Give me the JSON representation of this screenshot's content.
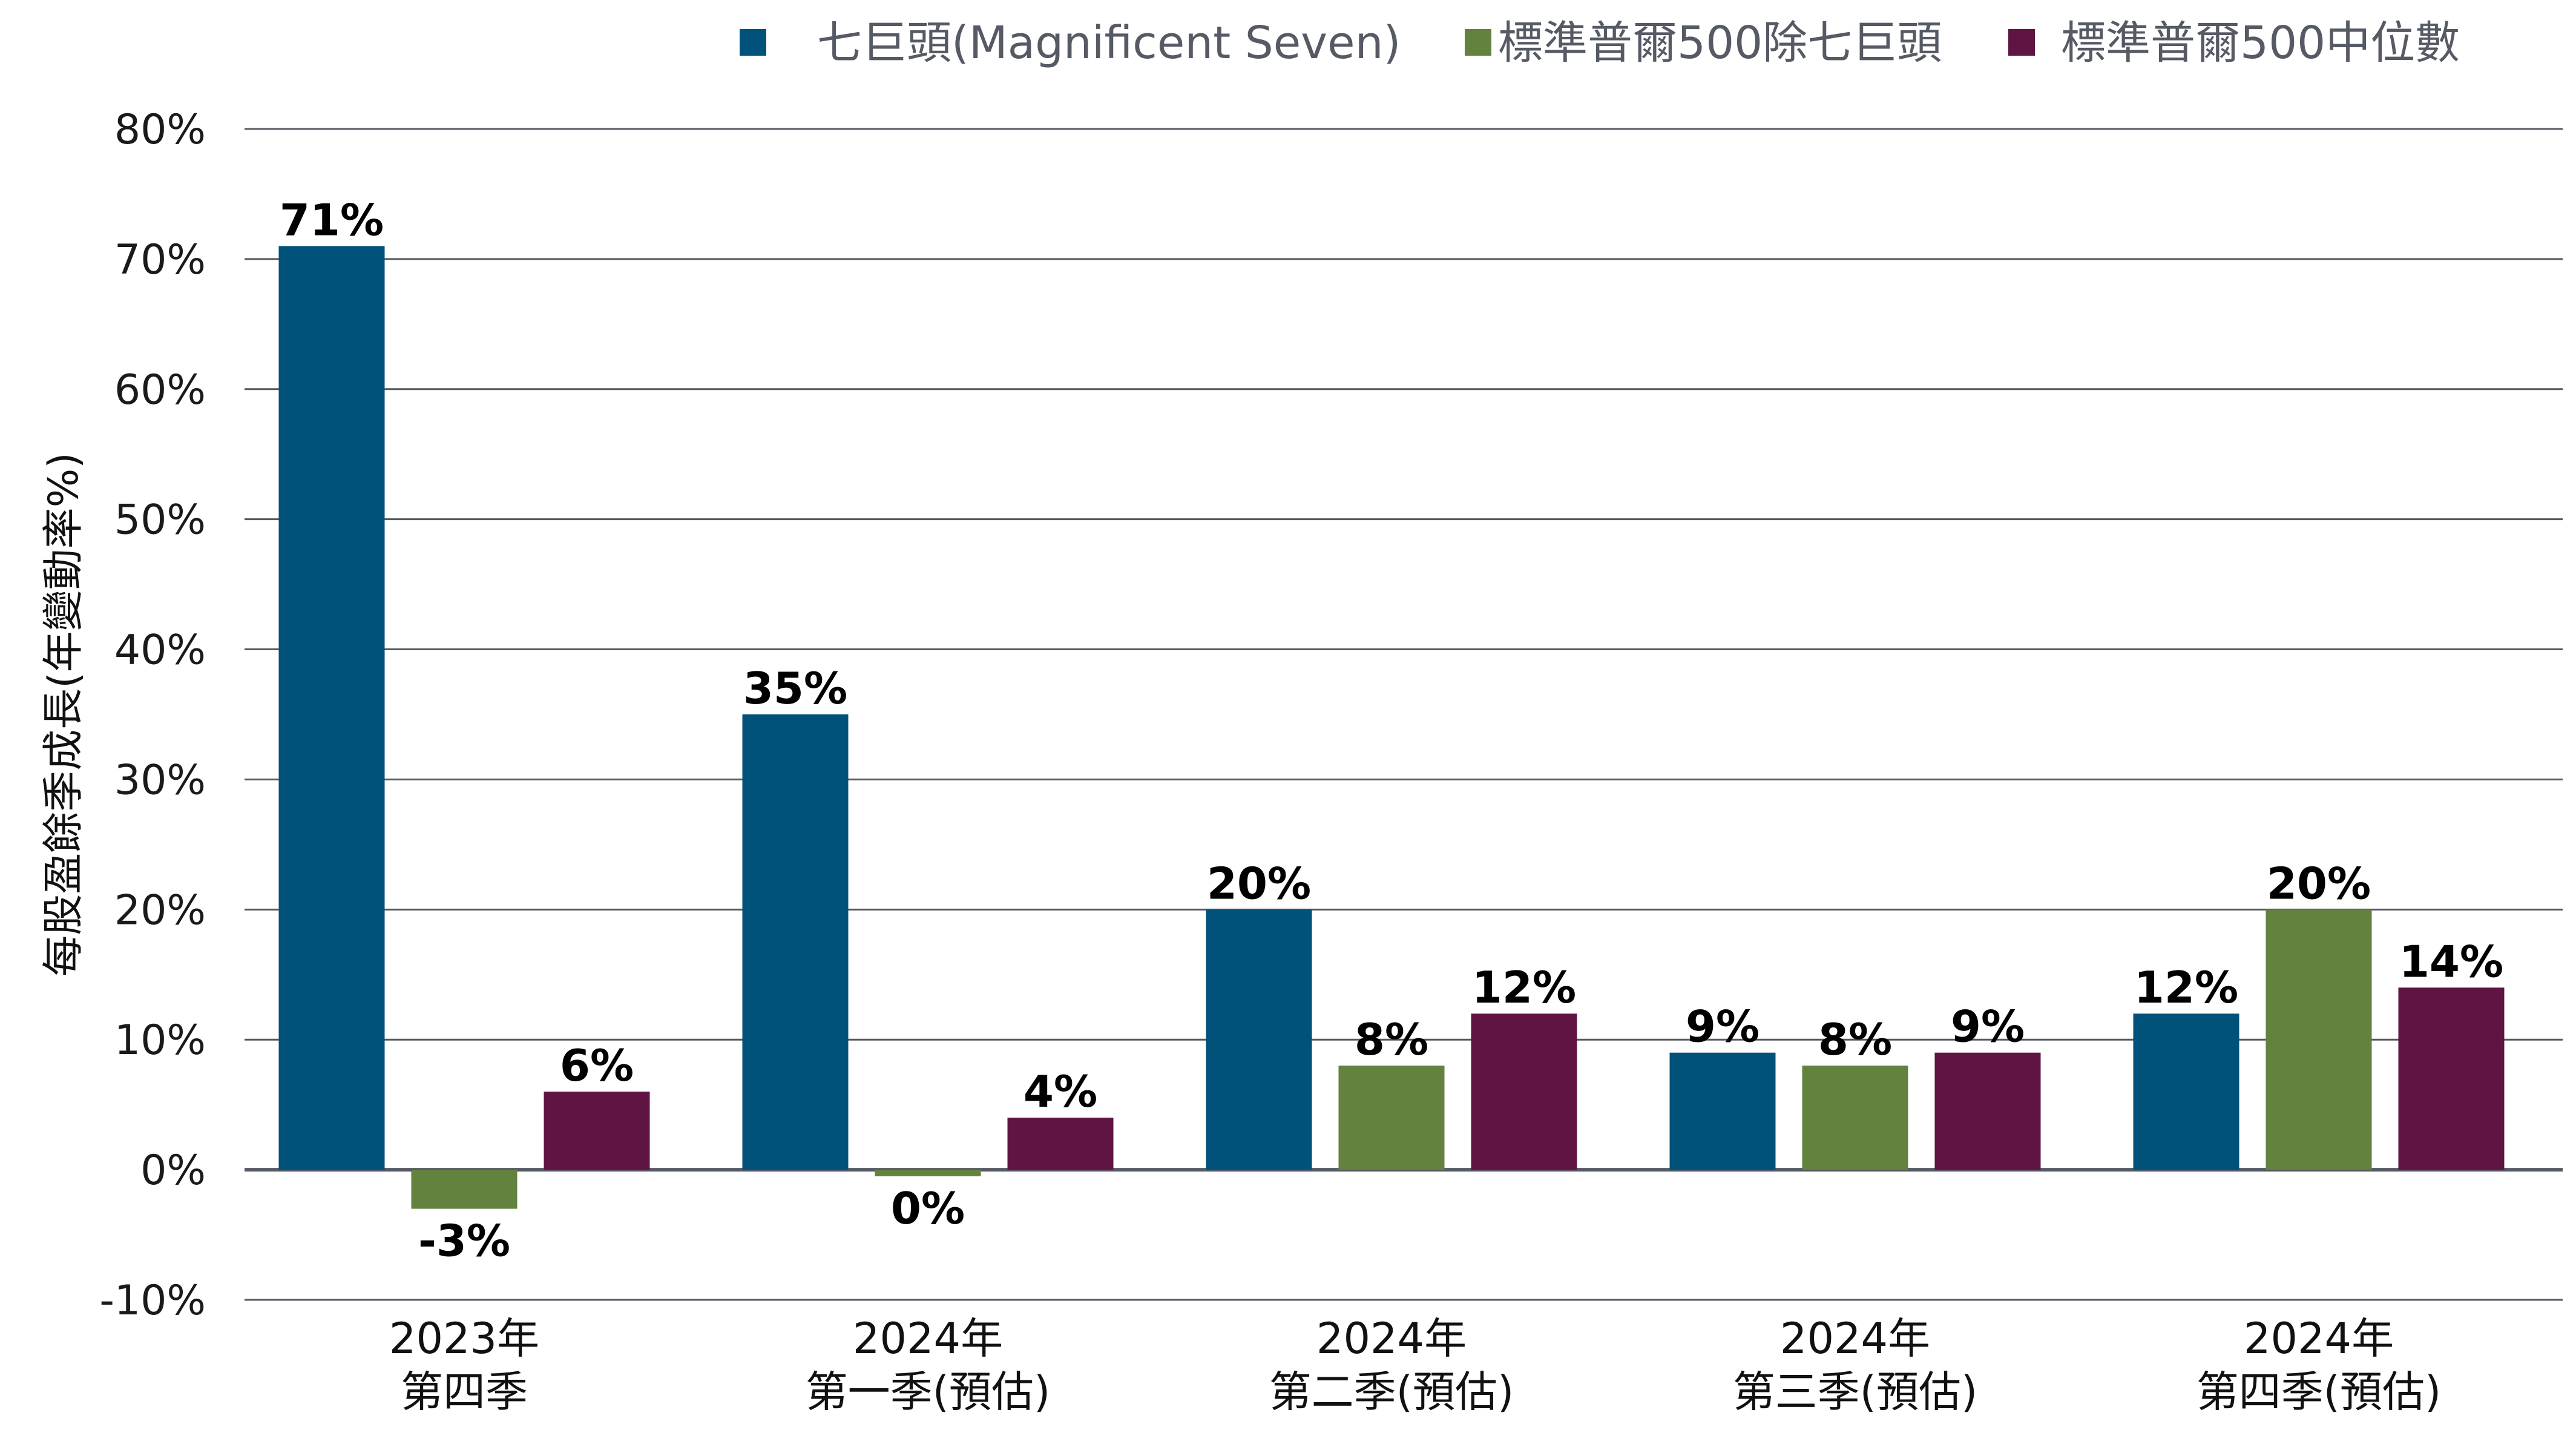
{
  "chart_data": {
    "type": "bar",
    "title": "",
    "ylabel": "每股盈餘季成長(年變動率%)",
    "xlabel": "",
    "ylim": [
      -10,
      80
    ],
    "yticks": [
      -10,
      0,
      10,
      20,
      30,
      40,
      50,
      60,
      70,
      80
    ],
    "ytick_labels": [
      "-10%",
      "0%",
      "10%",
      "20%",
      "30%",
      "40%",
      "50%",
      "60%",
      "70%",
      "80%"
    ],
    "grid": true,
    "legend_position": "top",
    "categories": [
      [
        "2023年",
        "第四季"
      ],
      [
        "2024年",
        "第一季(預估)"
      ],
      [
        "2024年",
        "第二季(預估)"
      ],
      [
        "2024年",
        "第三季(預估)"
      ],
      [
        "2024年",
        "第四季(預估)"
      ]
    ],
    "series": [
      {
        "name": "七巨頭(Magnificent Seven)",
        "color": "#00527a",
        "values": [
          71,
          35,
          20,
          9,
          12
        ],
        "labels": [
          "71%",
          "35%",
          "20%",
          "9%",
          "12%"
        ]
      },
      {
        "name": "標準普爾500除七巨頭",
        "color": "#62823e",
        "values": [
          -3,
          -0.5,
          8,
          8,
          20
        ],
        "labels": [
          "-3%",
          "0%",
          "8%",
          "8%",
          "20%"
        ]
      },
      {
        "name": "標準普爾500中位數",
        "color": "#5f1444",
        "values": [
          6,
          4,
          12,
          9,
          14
        ],
        "labels": [
          "6%",
          "4%",
          "12%",
          "9%",
          "14%"
        ]
      }
    ]
  }
}
